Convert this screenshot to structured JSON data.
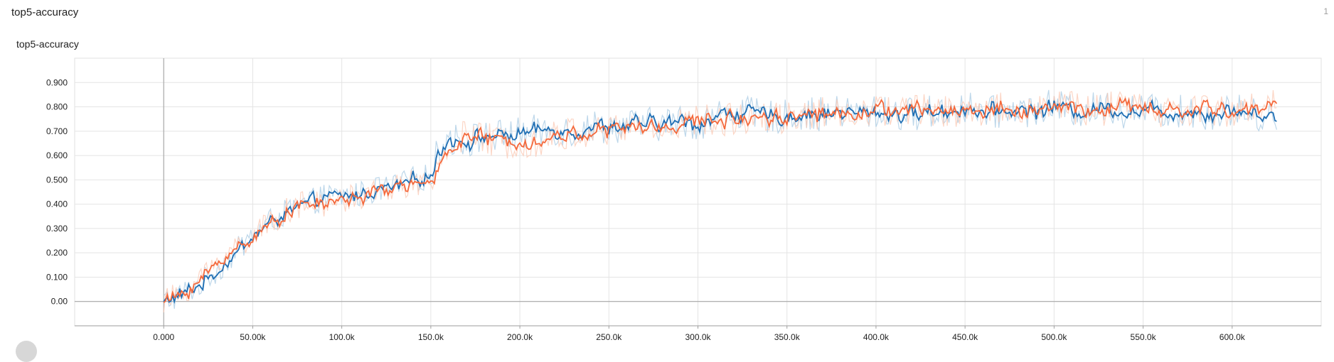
{
  "card": {
    "title": "top5-accuracy",
    "count": "1"
  },
  "chart_data": {
    "type": "line",
    "title": "top5-accuracy",
    "xlabel": "",
    "ylabel": "",
    "xlim": [
      -50000,
      650000
    ],
    "ylim": [
      -0.1,
      1.0
    ],
    "x_ticks": [
      0,
      50000,
      100000,
      150000,
      200000,
      250000,
      300000,
      350000,
      400000,
      450000,
      500000,
      550000,
      600000
    ],
    "x_tick_labels": [
      "0.000",
      "50.00k",
      "100.0k",
      "150.0k",
      "200.0k",
      "250.0k",
      "300.0k",
      "350.0k",
      "400.0k",
      "450.0k",
      "500.0k",
      "550.0k",
      "600.0k"
    ],
    "y_ticks": [
      0,
      0.1,
      0.2,
      0.3,
      0.4,
      0.5,
      0.6,
      0.7,
      0.8,
      0.9
    ],
    "y_tick_labels": [
      "0.00",
      "0.100",
      "0.200",
      "0.300",
      "0.400",
      "0.500",
      "0.600",
      "0.700",
      "0.800",
      "0.900"
    ],
    "grid": true,
    "series": [
      {
        "color": "#1f6fb4",
        "raw_color": "#a7c9e3",
        "x": [
          0,
          10000,
          20000,
          30000,
          40000,
          50000,
          60000,
          70000,
          80000,
          90000,
          100000,
          110000,
          120000,
          130000,
          140000,
          150000,
          155000,
          160000,
          170000,
          180000,
          190000,
          200000,
          210000,
          220000,
          230000,
          240000,
          250000,
          260000,
          270000,
          280000,
          290000,
          300000,
          310000,
          320000,
          330000,
          340000,
          350000,
          360000,
          370000,
          380000,
          390000,
          400000,
          410000,
          420000,
          430000,
          440000,
          450000,
          460000,
          470000,
          480000,
          490000,
          500000,
          510000,
          520000,
          530000,
          540000,
          550000,
          560000,
          570000,
          580000,
          590000,
          600000,
          610000,
          620000,
          625000
        ],
        "values": [
          0.0,
          0.03,
          0.07,
          0.13,
          0.2,
          0.27,
          0.33,
          0.37,
          0.4,
          0.43,
          0.43,
          0.44,
          0.46,
          0.47,
          0.5,
          0.52,
          0.64,
          0.67,
          0.66,
          0.68,
          0.68,
          0.69,
          0.7,
          0.71,
          0.7,
          0.72,
          0.72,
          0.72,
          0.73,
          0.73,
          0.74,
          0.73,
          0.76,
          0.78,
          0.77,
          0.76,
          0.76,
          0.77,
          0.77,
          0.78,
          0.77,
          0.78,
          0.77,
          0.77,
          0.78,
          0.78,
          0.8,
          0.77,
          0.78,
          0.79,
          0.78,
          0.81,
          0.78,
          0.79,
          0.8,
          0.78,
          0.79,
          0.78,
          0.78,
          0.78,
          0.77,
          0.79,
          0.77,
          0.77,
          0.76
        ]
      },
      {
        "color": "#f4693c",
        "raw_color": "#fbc8b3",
        "x": [
          0,
          10000,
          20000,
          30000,
          40000,
          50000,
          60000,
          70000,
          80000,
          90000,
          100000,
          110000,
          120000,
          130000,
          140000,
          150000,
          155000,
          160000,
          170000,
          180000,
          190000,
          200000,
          210000,
          220000,
          230000,
          240000,
          250000,
          260000,
          270000,
          280000,
          290000,
          300000,
          310000,
          320000,
          330000,
          340000,
          350000,
          360000,
          370000,
          380000,
          390000,
          400000,
          410000,
          420000,
          430000,
          440000,
          450000,
          460000,
          470000,
          480000,
          490000,
          500000,
          510000,
          520000,
          530000,
          540000,
          550000,
          560000,
          570000,
          580000,
          590000,
          600000,
          610000,
          620000,
          625000
        ],
        "values": [
          0.0,
          0.03,
          0.09,
          0.16,
          0.22,
          0.27,
          0.32,
          0.38,
          0.4,
          0.4,
          0.42,
          0.43,
          0.45,
          0.47,
          0.49,
          0.46,
          0.58,
          0.64,
          0.68,
          0.67,
          0.65,
          0.67,
          0.65,
          0.68,
          0.69,
          0.7,
          0.7,
          0.72,
          0.71,
          0.72,
          0.73,
          0.74,
          0.75,
          0.75,
          0.76,
          0.77,
          0.75,
          0.78,
          0.77,
          0.77,
          0.79,
          0.78,
          0.79,
          0.78,
          0.79,
          0.78,
          0.79,
          0.78,
          0.8,
          0.78,
          0.79,
          0.79,
          0.8,
          0.78,
          0.79,
          0.81,
          0.79,
          0.78,
          0.78,
          0.79,
          0.79,
          0.78,
          0.79,
          0.8,
          0.81
        ]
      }
    ]
  }
}
